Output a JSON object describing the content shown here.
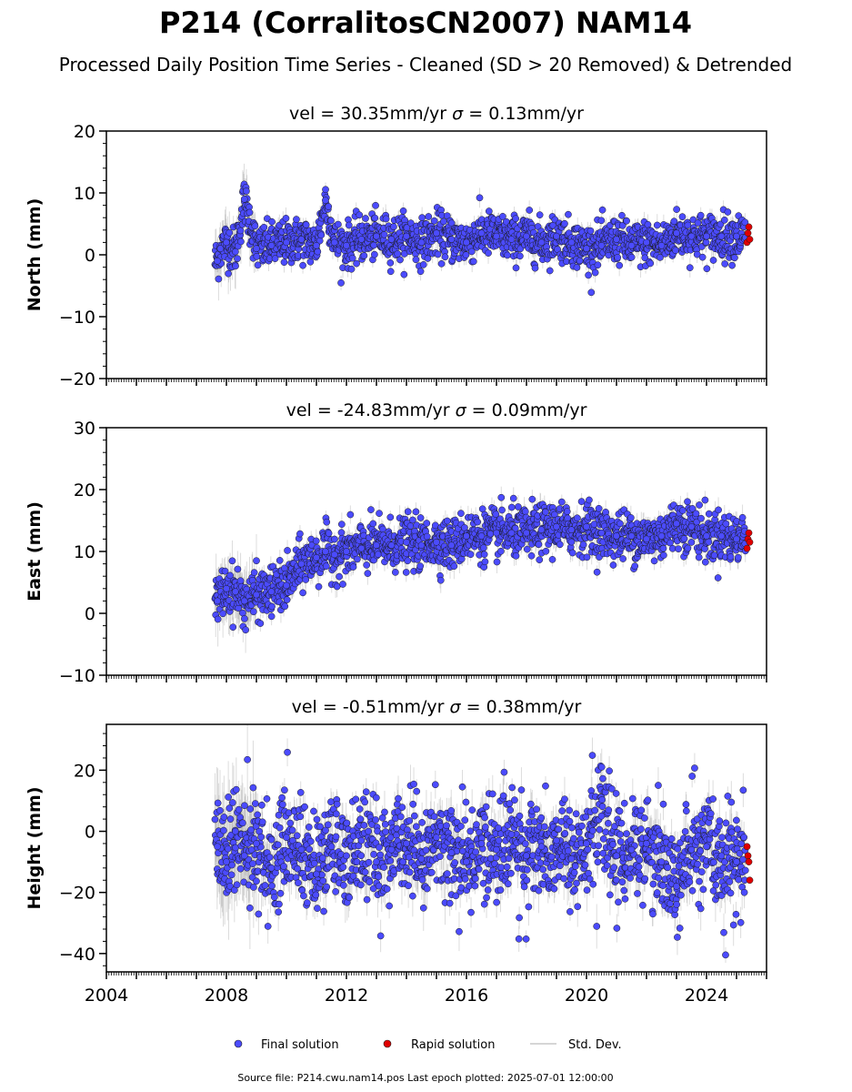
{
  "figure": {
    "title": "P214 (CorralitosCN2007) NAM14",
    "subtitle": "Processed Daily Position Time Series - Cleaned (SD > 20 Removed) & Detrended",
    "footer": "Source file: P214.cwu.nam14.pos  Last epoch plotted: 2025-07-01 12:00:00"
  },
  "legend": {
    "placement": "bottom-center",
    "final_label": "Final solution",
    "rapid_label": "Rapid solution",
    "std_label": "Std. Dev."
  },
  "colors": {
    "final": "#4b4bff",
    "rapid": "#e00000",
    "std": "#c8c8c8",
    "marker_edge": "#1a1a1a"
  },
  "chart_data": [
    {
      "type": "scatter",
      "component": "North",
      "title_prefix": "vel = 30.35mm/yr",
      "title_sigma": "= 0.13mm/yr",
      "ylabel": "North (mm)",
      "xlim": [
        2004.0,
        2026.0
      ],
      "ylim": [
        -20,
        20
      ],
      "yticks": [
        -20,
        -10,
        0,
        10,
        20
      ],
      "ytick_labels": [
        "−20",
        "−10",
        "0",
        "10",
        "20"
      ],
      "x_ticks": [
        2004,
        2008,
        2012,
        2016,
        2020,
        2024
      ],
      "x_tick_labels": [],
      "series": [
        {
          "name": "Final solution",
          "x": [
            2007.7,
            2007.8,
            2008.0,
            2008.3,
            2008.6,
            2009.0,
            2009.5,
            2010.0,
            2010.5,
            2011.0,
            2011.3,
            2011.6,
            2012.0,
            2012.5,
            2013.0,
            2013.5,
            2014.0,
            2014.5,
            2015.0,
            2015.5,
            2016.0,
            2016.5,
            2017.0,
            2017.5,
            2018.0,
            2018.5,
            2019.0,
            2019.5,
            2020.0,
            2020.5,
            2021.0,
            2021.5,
            2022.0,
            2022.5,
            2023.0,
            2023.5,
            2024.0,
            2024.5,
            2025.0
          ],
          "y": [
            -1.0,
            1.0,
            2.0,
            0.5,
            9.0,
            1.0,
            1.5,
            2.0,
            2.5,
            1.5,
            8.8,
            2.0,
            1.5,
            2.5,
            3.0,
            2.5,
            3.0,
            2.0,
            3.5,
            2.5,
            2.0,
            3.5,
            3.0,
            2.5,
            3.0,
            2.0,
            3.0,
            2.0,
            1.0,
            1.5,
            2.5,
            1.5,
            2.0,
            1.5,
            3.5,
            3.0,
            3.0,
            3.0,
            3.0
          ]
        },
        {
          "name": "Rapid solution",
          "x": [
            2025.35,
            2025.38,
            2025.41,
            2025.44
          ],
          "y": [
            2.0,
            3.5,
            4.5,
            2.5
          ]
        }
      ]
    },
    {
      "type": "scatter",
      "component": "East",
      "title_prefix": "vel = -24.83mm/yr",
      "title_sigma": "= 0.09mm/yr",
      "ylabel": "East (mm)",
      "xlim": [
        2004.0,
        2026.0
      ],
      "ylim": [
        -10,
        30
      ],
      "yticks": [
        -10,
        0,
        10,
        20,
        30
      ],
      "ytick_labels": [
        "−10",
        "0",
        "10",
        "20",
        "30"
      ],
      "x_ticks": [
        2004,
        2008,
        2012,
        2016,
        2020,
        2024
      ],
      "x_tick_labels": [],
      "series": [
        {
          "name": "Final solution",
          "x": [
            2007.7,
            2008.0,
            2008.3,
            2008.6,
            2009.0,
            2009.5,
            2010.0,
            2010.5,
            2011.0,
            2011.3,
            2011.6,
            2012.0,
            2012.5,
            2013.0,
            2013.5,
            2014.0,
            2014.5,
            2015.0,
            2015.5,
            2016.0,
            2016.5,
            2017.0,
            2017.5,
            2018.0,
            2018.5,
            2019.0,
            2019.5,
            2020.0,
            2020.5,
            2021.0,
            2021.5,
            2022.0,
            2022.5,
            2023.0,
            2023.5,
            2024.0,
            2024.5,
            2025.0
          ],
          "y": [
            2.0,
            4.0,
            3.5,
            2.0,
            3.0,
            3.5,
            4.5,
            8.0,
            9.0,
            10.0,
            9.5,
            10.0,
            10.5,
            11.0,
            11.0,
            11.5,
            11.0,
            11.5,
            11.0,
            12.5,
            12.5,
            13.0,
            13.0,
            13.0,
            13.5,
            14.0,
            13.5,
            14.0,
            13.0,
            12.5,
            12.5,
            12.0,
            12.5,
            14.5,
            14.0,
            12.5,
            12.5,
            12.0
          ]
        },
        {
          "name": "Rapid solution",
          "x": [
            2025.35,
            2025.38,
            2025.41,
            2025.44
          ],
          "y": [
            10.5,
            12.0,
            13.0,
            11.5
          ]
        }
      ]
    },
    {
      "type": "scatter",
      "component": "Height",
      "title_prefix": "vel = -0.51mm/yr",
      "title_sigma": "= 0.38mm/yr",
      "ylabel": "Height (mm)",
      "xlim": [
        2004.0,
        2026.0
      ],
      "ylim": [
        -46,
        35
      ],
      "yticks": [
        -40,
        -20,
        0,
        20
      ],
      "ytick_labels": [
        "−40",
        "−20",
        "0",
        "20"
      ],
      "x_ticks": [
        2004,
        2008,
        2012,
        2016,
        2020,
        2024
      ],
      "x_tick_labels": [
        "2004",
        "2008",
        "2012",
        "2016",
        "2020",
        "2024"
      ],
      "series": [
        {
          "name": "Final solution",
          "x": [
            2007.7,
            2008.0,
            2008.3,
            2008.6,
            2009.0,
            2009.5,
            2010.0,
            2010.5,
            2011.0,
            2011.5,
            2012.0,
            2012.5,
            2013.0,
            2013.5,
            2014.0,
            2014.5,
            2015.0,
            2015.5,
            2016.0,
            2016.5,
            2017.0,
            2017.5,
            2018.0,
            2018.5,
            2019.0,
            2019.5,
            2020.0,
            2020.5,
            2021.0,
            2021.5,
            2022.0,
            2022.5,
            2023.0,
            2023.5,
            2024.0,
            2024.5,
            2025.0
          ],
          "y": [
            -5,
            -10,
            0,
            -8,
            -4,
            -12,
            -2,
            -6,
            -14,
            -5,
            -8,
            -3,
            -10,
            -6,
            -4,
            -9,
            -2,
            -7,
            -10,
            -4,
            -6,
            -1,
            -8,
            -5,
            -3,
            -9,
            -4,
            5,
            -8,
            -6,
            -4,
            -10,
            -18,
            -6,
            -5,
            -8,
            -10
          ]
        },
        {
          "name": "Rapid solution",
          "x": [
            2025.35,
            2025.38,
            2025.41,
            2025.44
          ],
          "y": [
            -5,
            -8,
            -10,
            -16
          ]
        }
      ]
    }
  ]
}
